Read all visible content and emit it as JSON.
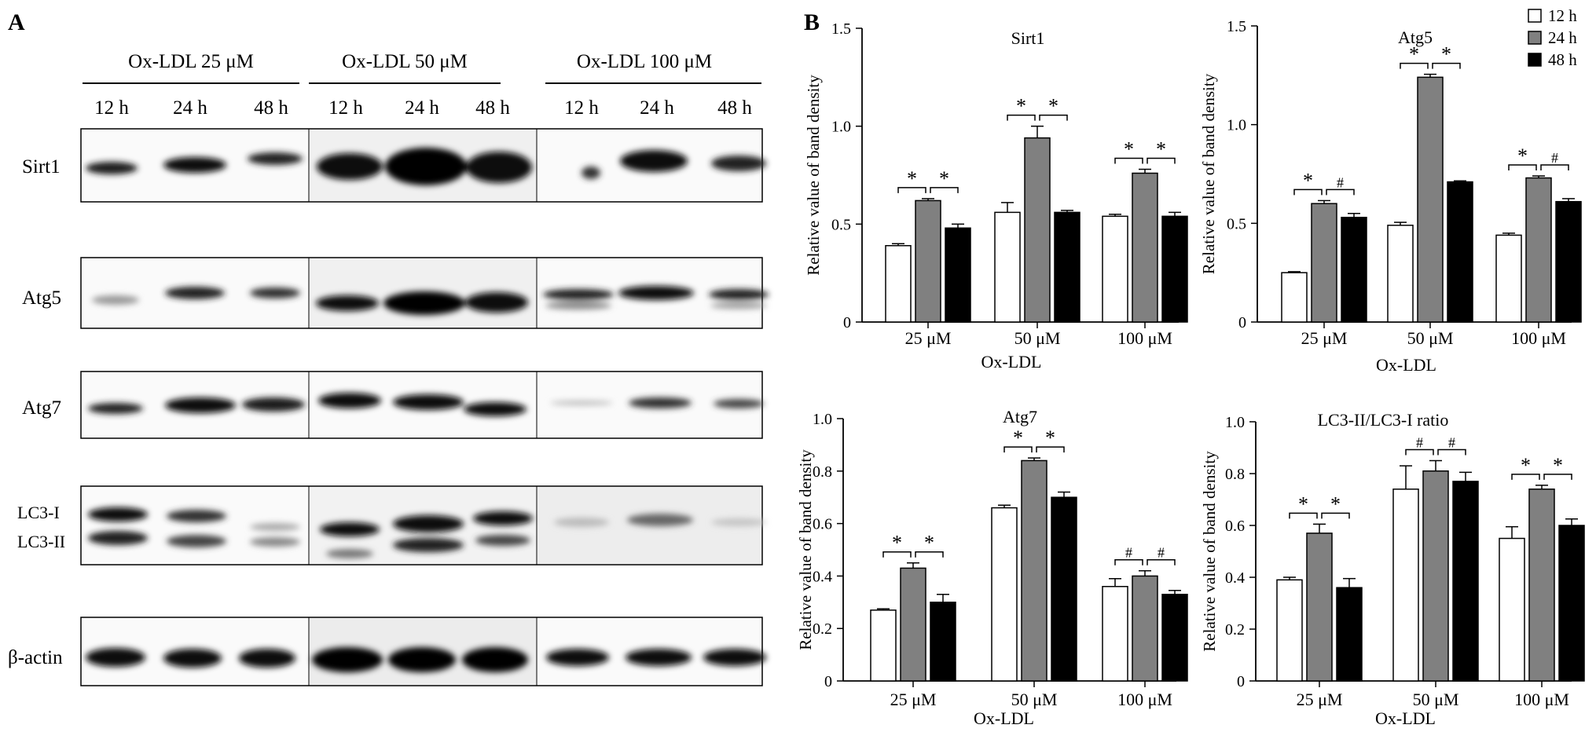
{
  "panel_a": {
    "label": "A",
    "groups": [
      {
        "label": "Ox-LDL 25 μM",
        "times": [
          "12 h",
          "24 h",
          "48 h"
        ]
      },
      {
        "label": "Ox-LDL 50 μM",
        "times": [
          "12 h",
          "24 h",
          "48 h"
        ]
      },
      {
        "label": "Ox-LDL 100  μM",
        "times": [
          "12 h",
          "24 h",
          "48 h"
        ]
      }
    ],
    "blots": [
      {
        "label": "Sirt1"
      },
      {
        "label": "Atg5"
      },
      {
        "label": "Atg7"
      },
      {
        "label": "LC3-I",
        "label2": "LC3-II"
      },
      {
        "label": "β-actin"
      }
    ]
  },
  "panel_b": {
    "label": "B"
  },
  "legend": {
    "placement": "top-right",
    "entries": [
      "12 h",
      "24 h",
      "48 h"
    ],
    "colors": [
      "#ffffff",
      "#808080",
      "#000000"
    ]
  },
  "chart_data": [
    {
      "type": "bar",
      "title": "Sirt1",
      "ylabel": "Relative value of band density",
      "xlabel": "Ox-LDL",
      "categories": [
        "25 μM",
        "50 μM",
        "100 μM"
      ],
      "ylim": [
        0,
        1.5
      ],
      "yticks": [
        "0",
        "0.5",
        "1.0",
        "1.5"
      ],
      "ytick_values": [
        0,
        0.5,
        1.0,
        1.5
      ],
      "series": [
        {
          "name": "12 h",
          "color": "#ffffff",
          "values": [
            0.39,
            0.56,
            0.54
          ],
          "errors": [
            0.01,
            0.05,
            0.01
          ]
        },
        {
          "name": "24 h",
          "color": "#808080",
          "values": [
            0.62,
            0.94,
            0.76
          ],
          "errors": [
            0.01,
            0.06,
            0.02
          ]
        },
        {
          "name": "48 h",
          "color": "#000000",
          "values": [
            0.48,
            0.56,
            0.54
          ],
          "errors": [
            0.02,
            0.01,
            0.02
          ]
        }
      ],
      "significance": [
        [
          "*",
          "*"
        ],
        [
          "*",
          "*"
        ],
        [
          "*",
          "*"
        ]
      ]
    },
    {
      "type": "bar",
      "title": "Atg5",
      "ylabel": "Relative value of band density",
      "xlabel": "Ox-LDL",
      "categories": [
        "25 μM",
        "50 μM",
        "100 μM"
      ],
      "ylim": [
        0,
        1.5
      ],
      "yticks": [
        "0",
        "0.5",
        "1.0",
        "1.5"
      ],
      "ytick_values": [
        0,
        0.5,
        1.0,
        1.5
      ],
      "series": [
        {
          "name": "12 h",
          "color": "#ffffff",
          "values": [
            0.25,
            0.49,
            0.44
          ],
          "errors": [
            0.005,
            0.015,
            0.01
          ]
        },
        {
          "name": "24 h",
          "color": "#808080",
          "values": [
            0.6,
            1.24,
            0.73
          ],
          "errors": [
            0.015,
            0.015,
            0.01
          ]
        },
        {
          "name": "48 h",
          "color": "#000000",
          "values": [
            0.53,
            0.71,
            0.61
          ],
          "errors": [
            0.02,
            0.005,
            0.015
          ]
        }
      ],
      "significance": [
        [
          "*",
          "#"
        ],
        [
          "*",
          "*"
        ],
        [
          "*",
          "#"
        ]
      ]
    },
    {
      "type": "bar",
      "title": "Atg7",
      "ylabel": "Relative value of band density",
      "xlabel": "Ox-LDL",
      "categories": [
        "25 μM",
        "50 μM",
        "100 μM"
      ],
      "ylim": [
        0,
        1.0
      ],
      "yticks": [
        "0",
        "0.2",
        "0.4",
        "0.6",
        "0.8",
        "1.0"
      ],
      "ytick_values": [
        0,
        0.2,
        0.4,
        0.6,
        0.8,
        1.0
      ],
      "series": [
        {
          "name": "12 h",
          "color": "#ffffff",
          "values": [
            0.27,
            0.66,
            0.36
          ],
          "errors": [
            0.005,
            0.01,
            0.03
          ]
        },
        {
          "name": "24 h",
          "color": "#808080",
          "values": [
            0.43,
            0.84,
            0.4
          ],
          "errors": [
            0.02,
            0.01,
            0.02
          ]
        },
        {
          "name": "48 h",
          "color": "#000000",
          "values": [
            0.3,
            0.7,
            0.33
          ],
          "errors": [
            0.03,
            0.02,
            0.015
          ]
        }
      ],
      "significance": [
        [
          "*",
          "*"
        ],
        [
          "*",
          "*"
        ],
        [
          "#",
          "#"
        ]
      ]
    },
    {
      "type": "bar",
      "title": "LC3-II/LC3-I ratio",
      "ylabel": "Relative value of band density",
      "xlabel": "Ox-LDL",
      "categories": [
        "25 μM",
        "50 μM",
        "100 μM"
      ],
      "ylim": [
        0,
        1.0
      ],
      "yticks": [
        "0",
        "0.2",
        "0.4",
        "0.6",
        "0.8",
        "1.0"
      ],
      "ytick_values": [
        0,
        0.2,
        0.4,
        0.6,
        0.8,
        1.0
      ],
      "series": [
        {
          "name": "12 h",
          "color": "#ffffff",
          "values": [
            0.39,
            0.74,
            0.55
          ],
          "errors": [
            0.01,
            0.09,
            0.045
          ]
        },
        {
          "name": "24 h",
          "color": "#808080",
          "values": [
            0.57,
            0.81,
            0.74
          ],
          "errors": [
            0.035,
            0.04,
            0.015
          ]
        },
        {
          "name": "48 h",
          "color": "#000000",
          "values": [
            0.36,
            0.77,
            0.6
          ],
          "errors": [
            0.035,
            0.035,
            0.025
          ]
        }
      ],
      "significance": [
        [
          "*",
          "*"
        ],
        [
          "#",
          "#"
        ],
        [
          "*",
          "*"
        ]
      ]
    }
  ]
}
